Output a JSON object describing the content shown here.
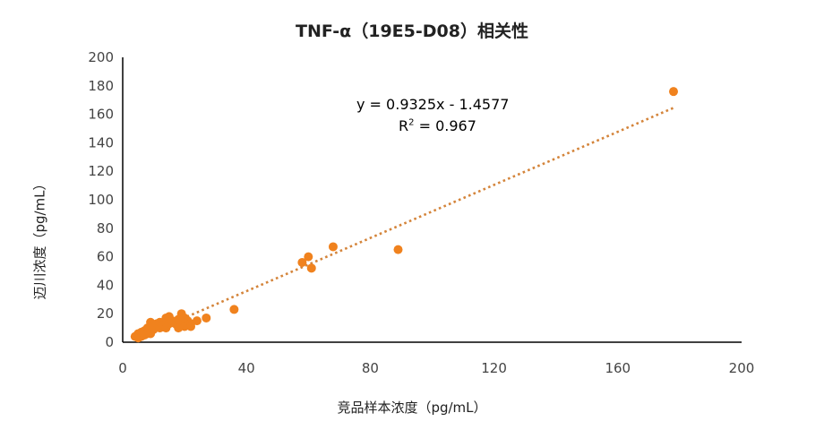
{
  "chart_data": {
    "type": "scatter",
    "title": "TNF-α（19E5-D08）相关性",
    "xlabel": "竞品样本浓度（pg/mL）",
    "ylabel": "迈川浓度（pg/mL）",
    "xlim": [
      0,
      200
    ],
    "ylim": [
      0,
      200
    ],
    "xticks": [
      "0",
      "40",
      "80",
      "120",
      "160",
      "200"
    ],
    "yticks": [
      "0",
      "20",
      "40",
      "60",
      "80",
      "100",
      "120",
      "140",
      "160",
      "180",
      "200"
    ],
    "grid": false,
    "legend": "none",
    "point_color": "#f0821e",
    "trendline": {
      "equation": "y = 0.9325x - 1.4577",
      "r2_prefix": "R",
      "r2_sup": "2",
      "r2_value": " = 0.967",
      "slope": 0.9325,
      "intercept": -1.4577,
      "x_range": [
        8,
        178
      ],
      "color": "#d4843a",
      "style": "dotted"
    },
    "points": [
      {
        "x": 4,
        "y": 4
      },
      {
        "x": 5,
        "y": 6
      },
      {
        "x": 5,
        "y": 3
      },
      {
        "x": 6,
        "y": 7
      },
      {
        "x": 6,
        "y": 4
      },
      {
        "x": 7,
        "y": 8
      },
      {
        "x": 7,
        "y": 5
      },
      {
        "x": 8,
        "y": 10
      },
      {
        "x": 8,
        "y": 6
      },
      {
        "x": 9,
        "y": 12
      },
      {
        "x": 9,
        "y": 14
      },
      {
        "x": 9,
        "y": 6
      },
      {
        "x": 10,
        "y": 9
      },
      {
        "x": 10,
        "y": 11
      },
      {
        "x": 11,
        "y": 13
      },
      {
        "x": 12,
        "y": 10
      },
      {
        "x": 12,
        "y": 14
      },
      {
        "x": 13,
        "y": 12
      },
      {
        "x": 14,
        "y": 17
      },
      {
        "x": 14,
        "y": 10
      },
      {
        "x": 15,
        "y": 18
      },
      {
        "x": 15,
        "y": 13
      },
      {
        "x": 16,
        "y": 15
      },
      {
        "x": 17,
        "y": 13
      },
      {
        "x": 18,
        "y": 10
      },
      {
        "x": 18,
        "y": 16
      },
      {
        "x": 19,
        "y": 20
      },
      {
        "x": 19,
        "y": 12
      },
      {
        "x": 20,
        "y": 11
      },
      {
        "x": 20,
        "y": 17
      },
      {
        "x": 21,
        "y": 15
      },
      {
        "x": 21,
        "y": 12
      },
      {
        "x": 22,
        "y": 13
      },
      {
        "x": 22,
        "y": 11
      },
      {
        "x": 24,
        "y": 15
      },
      {
        "x": 27,
        "y": 17
      },
      {
        "x": 36,
        "y": 23
      },
      {
        "x": 58,
        "y": 56
      },
      {
        "x": 60,
        "y": 60
      },
      {
        "x": 61,
        "y": 52
      },
      {
        "x": 68,
        "y": 67
      },
      {
        "x": 89,
        "y": 65
      },
      {
        "x": 178,
        "y": 176
      }
    ]
  }
}
